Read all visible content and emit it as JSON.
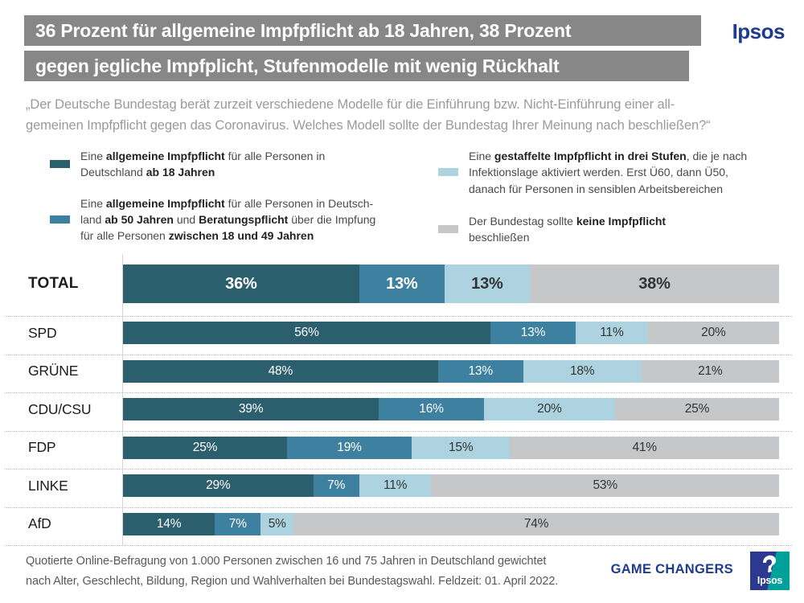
{
  "title": {
    "line1": "36 Prozent für allgemeine Impfpflicht ab 18 Jahren, 38 Prozent",
    "line2": "gegen jegliche Impfplicht, Stufenmodelle mit wenig Rückhalt",
    "bar_color": "#878787",
    "brand": "Ipsos",
    "brand_color": "#1e3c8f"
  },
  "subtitle": {
    "line1": "„Der Deutsche Bundestag berät zurzeit verschiedene Modelle für die Einführung bzw. Nicht-Einführung einer all-",
    "line2": "gemeinen Impfpflicht gegen das Coronavirus. Welches Modell sollte der Bundestag Ihrer Meinung nach beschließen?“"
  },
  "legend": {
    "items": [
      {
        "name": "ab-18",
        "color": "#2b5f6e",
        "parts": [
          {
            "t": "Eine "
          },
          {
            "t": "allgemeine Impfpflicht",
            "b": 1
          },
          {
            "t": " für alle Personen in\nDeutschland "
          },
          {
            "t": "ab 18 Jahren",
            "b": 1
          }
        ]
      },
      {
        "name": "ab-50-beratungspflicht",
        "color": "#3e80a0",
        "parts": [
          {
            "t": "Eine "
          },
          {
            "t": "allgemeine Impfpflicht",
            "b": 1
          },
          {
            "t": " für alle Personen in Deutsch-\nland "
          },
          {
            "t": "ab 50 Jahren",
            "b": 1
          },
          {
            "t": " und "
          },
          {
            "t": "Beratungspflicht",
            "b": 1
          },
          {
            "t": " über die Impfung\nfür alle Personen "
          },
          {
            "t": "zwischen 18 und 49 Jahren",
            "b": 1
          }
        ]
      },
      {
        "name": "gestaffelt-drei-stufen",
        "color": "#aed3e0",
        "parts": [
          {
            "t": "Eine "
          },
          {
            "t": "gestaffelte Impfpflicht in drei Stufen",
            "b": 1
          },
          {
            "t": ", die je nach\nInfektionslage aktiviert werden.  Erst Ü60, dann Ü50,\ndanach für Personen in sensiblen Arbeitsbereichen"
          }
        ]
      },
      {
        "name": "keine-impfpflicht",
        "color": "#c6c7c9",
        "parts": [
          {
            "t": "Der Bundestag sollte "
          },
          {
            "t": "keine Impfpflicht",
            "b": 1
          },
          {
            "t": "\nbeschließen"
          }
        ]
      }
    ]
  },
  "chart_data": {
    "type": "bar",
    "orientation": "horizontal-stacked",
    "title": "36 Prozent für allgemeine Impfpflicht ab 18 Jahren, 38 Prozent gegen jegliche Impfplicht, Stufenmodelle mit wenig Rückhalt",
    "categories": [
      "TOTAL",
      "SPD",
      "GRÜNE",
      "CDU/CSU",
      "FDP",
      "LINKE",
      "AfD"
    ],
    "series": [
      {
        "name": "Eine allgemeine Impfpflicht für alle Personen in Deutschland ab 18 Jahren",
        "color": "#2b5f6e",
        "label_color": "#ffffff",
        "values": [
          36,
          56,
          48,
          39,
          25,
          29,
          14
        ]
      },
      {
        "name": "Eine allgemeine Impfpflicht ab 50 Jahren und Beratungspflicht für alle Personen zwischen 18 und 49 Jahren",
        "color": "#3e80a0",
        "label_color": "#ffffff",
        "values": [
          13,
          13,
          13,
          16,
          19,
          7,
          7
        ]
      },
      {
        "name": "Eine gestaffelte Impfpflicht in drei Stufen, die je nach Infektionslage aktiviert werden",
        "color": "#aed3e0",
        "label_color": "#333333",
        "values": [
          13,
          11,
          18,
          20,
          15,
          11,
          5
        ]
      },
      {
        "name": "Der Bundestag sollte keine Impfpflicht beschließen",
        "color": "#c6c7c9",
        "label_color": "#333333",
        "values": [
          38,
          20,
          21,
          25,
          41,
          53,
          74
        ]
      }
    ],
    "value_suffix": "%",
    "xlim": [
      0,
      100
    ],
    "grid": false,
    "legend_position": "top"
  },
  "footer": {
    "line1": "Quotierte Online-Befragung von 1.000 Personen zwischen 16 und 75 Jahren in Deutschland gewichtet",
    "line2": "nach Alter, Geschlecht, Bildung, Region und Wahlverhalten bei Bundestagswahl. Feldzeit: 01. April 2022.",
    "tagline": "GAME CHANGERS",
    "logo_text": "Ipsos"
  }
}
